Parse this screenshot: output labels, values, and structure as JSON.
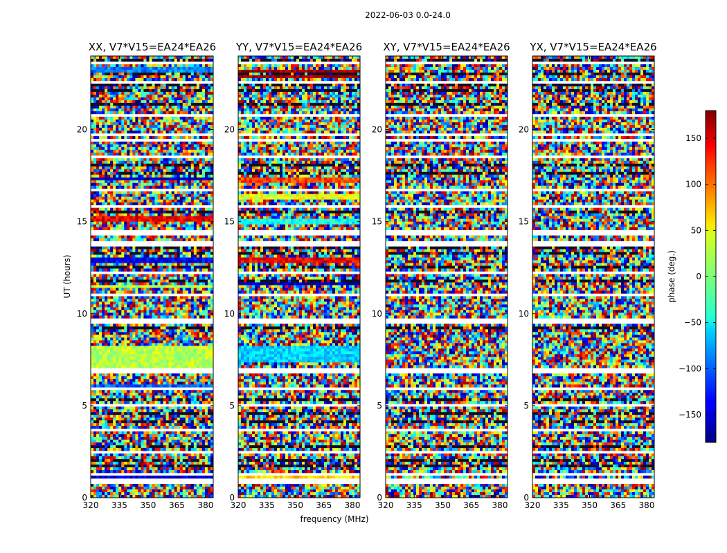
{
  "figure_title": "2022-06-03 0.0-24.0",
  "chart_data": {
    "type": "heatmap",
    "title": "2022-06-03 0.0-24.0",
    "xlabel": "frequency (MHz)",
    "ylabel": "UT (hours)",
    "xlim": [
      320,
      384
    ],
    "ylim": [
      0,
      24
    ],
    "xticks": [
      320,
      335,
      350,
      365,
      380
    ],
    "xtick_labels": [
      "320",
      "335",
      "350",
      "365",
      "380"
    ],
    "yticks": [
      0,
      5,
      10,
      15,
      20
    ],
    "ytick_labels": [
      "0",
      "5",
      "10",
      "15",
      "20"
    ],
    "colormap": "jet",
    "colorbar": {
      "label": "phase (deg.)",
      "range": [
        -180,
        180
      ],
      "ticks": [
        150,
        100,
        50,
        0,
        -50,
        -100,
        -150
      ],
      "tick_labels": [
        "150",
        "100",
        "50",
        "0",
        "−50",
        "−100",
        "−150"
      ]
    },
    "panels": [
      {
        "id": "xx",
        "title": "XX, V7*V15=EA24*EA26",
        "coherent_bands": [
          [
            7.0,
            8.3,
            20
          ],
          [
            5.8,
            6.1,
            -100
          ],
          [
            1.0,
            1.4,
            -150
          ],
          [
            12.7,
            13.0,
            -140
          ],
          [
            15.0,
            15.3,
            140
          ],
          [
            17.2,
            17.4,
            -160
          ],
          [
            11.4,
            11.6,
            20
          ],
          [
            23.1,
            23.4,
            -90
          ]
        ]
      },
      {
        "id": "yy",
        "title": "YY, V7*V15=EA24*EA26",
        "coherent_bands": [
          [
            7.3,
            8.3,
            -60
          ],
          [
            5.8,
            6.0,
            160
          ],
          [
            1.0,
            1.4,
            60
          ],
          [
            11.5,
            11.7,
            -160
          ],
          [
            12.7,
            13.0,
            140
          ],
          [
            14.8,
            15.1,
            -40
          ],
          [
            16.2,
            16.5,
            40
          ],
          [
            17.1,
            17.4,
            110
          ],
          [
            22.8,
            23.3,
            170
          ]
        ]
      },
      {
        "id": "xy",
        "title": "XY, V7*V15=EA24*EA26",
        "coherent_bands": []
      },
      {
        "id": "yx",
        "title": "YX, V7*V15=EA24*EA26",
        "coherent_bands": []
      }
    ],
    "blank_rows_hours": [
      0.9,
      1.3,
      2.5,
      3.7,
      5.0,
      5.9,
      6.9,
      9.6,
      11.0,
      12.2,
      13.8,
      14.4,
      15.8,
      16.7,
      18.5,
      19.4,
      19.7,
      20.8,
      22.6,
      23.6
    ],
    "dark_rows_hours": [
      0.6,
      1.7,
      2.0,
      2.8,
      4.1,
      4.6,
      5.3,
      6.6,
      8.1,
      8.7,
      9.2,
      10.5,
      11.8,
      12.5,
      13.3,
      13.6,
      14.1,
      15.5,
      16.2,
      17.6,
      18.1,
      18.9,
      21.4,
      22.1,
      22.4,
      23.0,
      23.8
    ]
  }
}
